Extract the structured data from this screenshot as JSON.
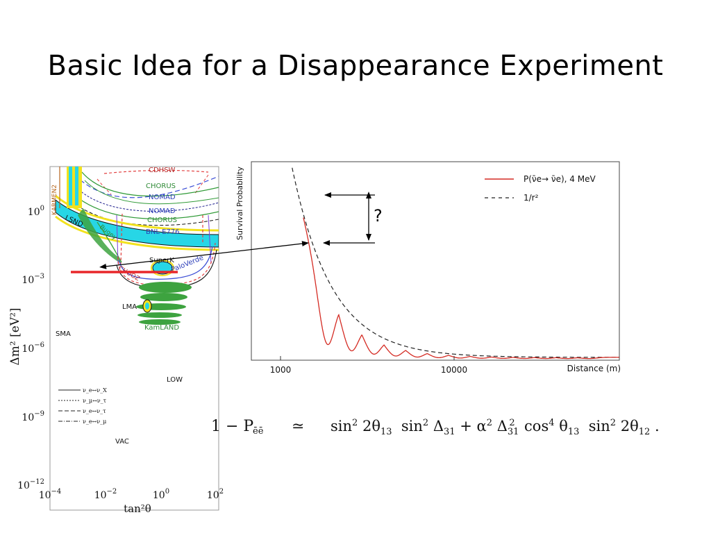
{
  "slide": {
    "title": "Basic Idea for a Disappearance Experiment"
  },
  "chart_data": [
    {
      "type": "contour",
      "xscale": "log",
      "yscale": "log",
      "xlim": [
        0.0001,
        100
      ],
      "ylim": [
        1e-12,
        100
      ],
      "xlabel": "tan²θ",
      "ylabel": "Δm² [eV²]",
      "x_ticks": [
        {
          "base": "10",
          "exp": "−4",
          "value": 0.0001
        },
        {
          "base": "10",
          "exp": "−2",
          "value": 0.01
        },
        {
          "base": "10",
          "exp": "0",
          "value": 1
        },
        {
          "base": "10",
          "exp": "2",
          "value": 100
        }
      ],
      "y_ticks": [
        {
          "base": "10",
          "exp": "0",
          "value": 1
        },
        {
          "base": "10",
          "exp": "−3",
          "value": 0.001
        },
        {
          "base": "10",
          "exp": "−6",
          "value": 1e-06
        },
        {
          "base": "10",
          "exp": "−9",
          "value": 1e-09
        },
        {
          "base": "10",
          "exp": "−12",
          "value": 1e-12
        }
      ],
      "region_labels": [
        "CDHSW",
        "CHORUS",
        "NOMAD",
        "NOMAD",
        "CHORUS",
        "BNL E776",
        "KARMEN2",
        "LSND",
        "Bugey",
        "SuperK",
        "PaloVerde",
        "CHOOZ",
        "LMA",
        "KamLAND",
        "SMA",
        "LOW",
        "VAC"
      ],
      "legend": [
        {
          "label": "ν_e↔ν_X",
          "style": "solid"
        },
        {
          "label": "ν_μ↔ν_τ",
          "style": "dotted"
        },
        {
          "label": "ν_e↔ν_τ",
          "style": "dashed"
        },
        {
          "label": "ν_e↔ν_μ",
          "style": "dash-dot"
        }
      ],
      "highlight_line": {
        "color": "#e8262a",
        "dm2": 0.0025
      }
    },
    {
      "type": "line",
      "xscale": "log",
      "xlim": [
        600,
        60000
      ],
      "xlabel": "Distance (m)",
      "ylabel": "Survival Probability",
      "x_ticks": [
        "1000",
        "10000"
      ],
      "series": [
        {
          "name": "P(ν̄e→ ν̄e), 4 MeV",
          "color": "#d42a22",
          "style": "solid"
        },
        {
          "name": "1/r²",
          "color": "#333333",
          "style": "dashed"
        }
      ],
      "oscillation_minima_m": [
        1560,
        2100,
        2780,
        3650,
        4780,
        6250,
        8170,
        10700,
        14000,
        18300,
        23900,
        31300,
        40900
      ]
    }
  ],
  "annotation": {
    "question_mark": "?"
  },
  "formula": {
    "lhs": "1 − P",
    "lhs_sub": "ēē",
    "approx": "≃",
    "rhs": [
      {
        "t": "sin"
      },
      {
        "sup": "2"
      },
      {
        "t": " 2θ"
      },
      {
        "sub": "13"
      },
      {
        "t": "  sin"
      },
      {
        "sup": "2"
      },
      {
        "t": " Δ"
      },
      {
        "sub": "31"
      },
      {
        "t": " + α"
      },
      {
        "sup": "2"
      },
      {
        "t": " Δ"
      },
      {
        "sub": "31"
      },
      {
        "sup2": "2"
      },
      {
        "t": "  cos"
      },
      {
        "sup": "4"
      },
      {
        "t": " θ"
      },
      {
        "sub": "13"
      },
      {
        "t": "  sin"
      },
      {
        "sup": "2"
      },
      {
        "t": " 2θ"
      },
      {
        "sub": "12"
      },
      {
        "t": " ."
      }
    ]
  }
}
